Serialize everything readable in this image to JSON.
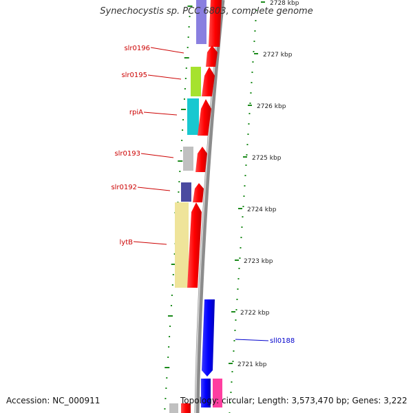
{
  "title": "Synechocystis sp. PCC 6803, complete genome",
  "footer": {
    "accession": "Accession: NC_000911",
    "summary": "Topology: circular; Length: 3,573,470 bp; Genes: 3,222"
  },
  "scale_labels": [
    "2728 kbp",
    "2727 kbp",
    "2726 kbp",
    "2725 kbp",
    "2724 kbp",
    "2723 kbp",
    "2722 kbp",
    "2721 kbp"
  ],
  "gene_labels": [
    {
      "name": "slr0196",
      "strand": "forward"
    },
    {
      "name": "slr0195",
      "strand": "forward"
    },
    {
      "name": "rpiA",
      "strand": "forward"
    },
    {
      "name": "slr0193",
      "strand": "forward"
    },
    {
      "name": "slr0192",
      "strand": "forward"
    },
    {
      "name": "lytB",
      "strand": "forward"
    },
    {
      "name": "sll0188",
      "strand": "reverse"
    }
  ],
  "colors": {
    "forward_label": "#cc0000",
    "reverse_label": "#0000cc",
    "forward_cds": "#ff0000",
    "reverse_cds": "#0000ff",
    "backbone": "#8c8c8c",
    "ticks": "#1a8a1a",
    "feature_violet": "#8a7fe0",
    "feature_lime": "#a6e22e",
    "feature_cyan": "#18c8d0",
    "feature_grey": "#c0c0c0",
    "feature_navy": "#4a4aa0",
    "feature_khaki": "#efe49a",
    "feature_pink": "#ff3ea0"
  }
}
